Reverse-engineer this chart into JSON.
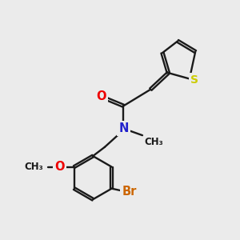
{
  "background_color": "#ebebeb",
  "bond_color": "#1a1a1a",
  "atom_colors": {
    "O": "#ee0000",
    "N": "#2222cc",
    "S": "#cccc00",
    "Br": "#cc6600",
    "C": "#1a1a1a"
  },
  "figsize": [
    3.0,
    3.0
  ],
  "dpi": 100
}
